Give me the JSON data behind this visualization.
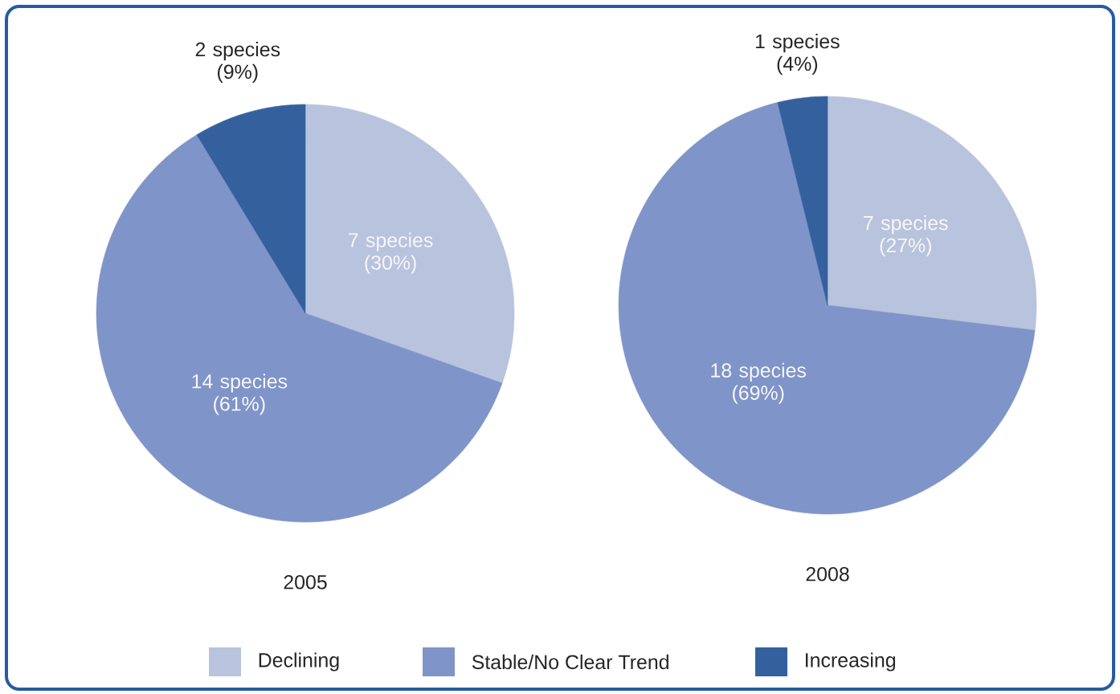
{
  "chart_data": [
    {
      "type": "pie",
      "title": "2005",
      "categories": [
        "Declining",
        "Stable/No Clear Trend",
        "Increasing"
      ],
      "values": [
        7,
        14,
        2
      ],
      "value_labels": [
        "7 species (30%)",
        "14 species (61%)",
        "2 species (9%)"
      ],
      "colors": [
        "#b8c3de",
        "#7f94c8",
        "#34619e"
      ],
      "legend": "bottom"
    },
    {
      "type": "pie",
      "title": "2008",
      "categories": [
        null,
        null,
        null
      ],
      "values": [
        7,
        18,
        1
      ],
      "value_labels": [
        "7 species (27%)",
        "18 species (69%)",
        "1 species (4%)"
      ],
      "colors": [
        "#b8c3de",
        "#7f94c8",
        "#34619e"
      ]
    }
  ]
}
